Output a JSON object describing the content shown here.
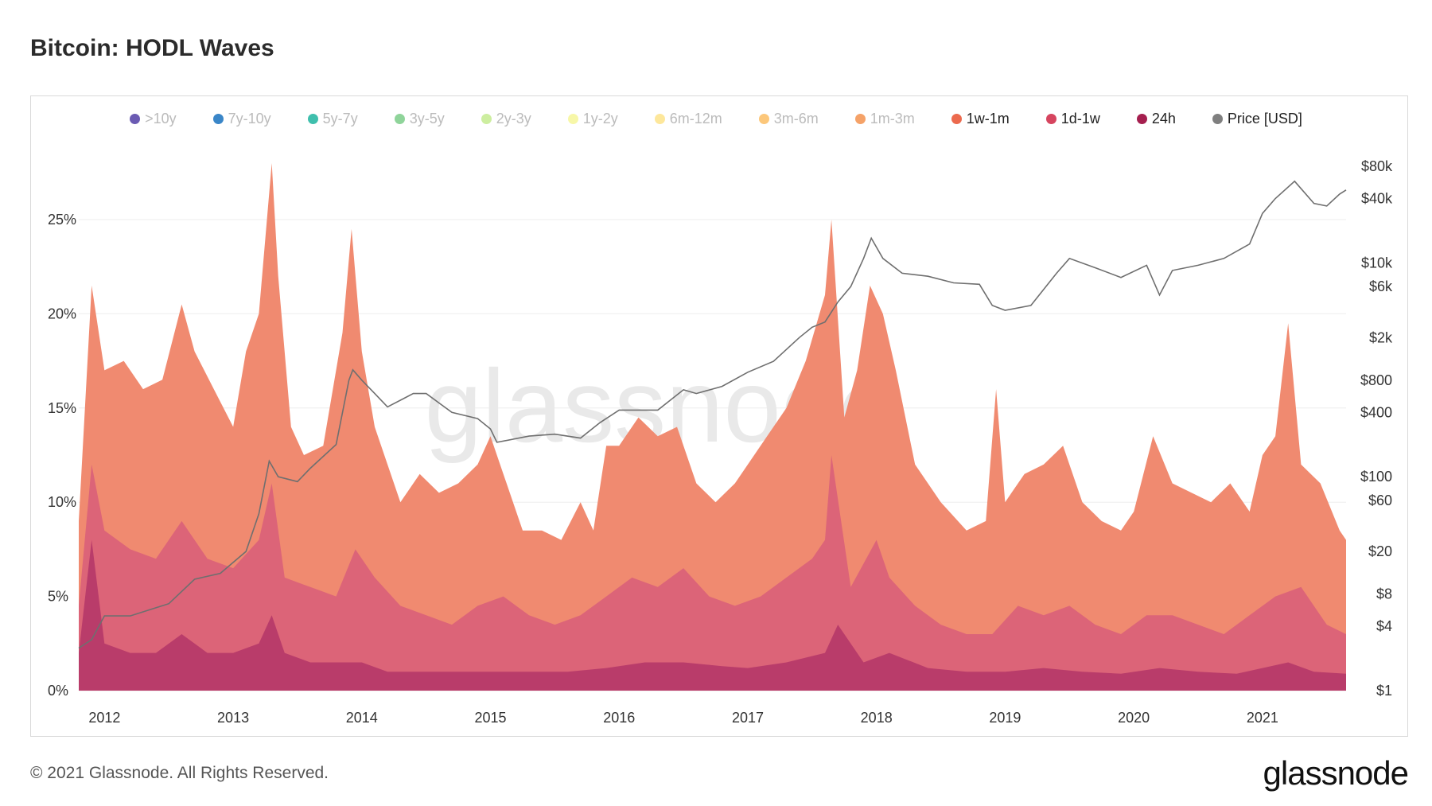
{
  "page": {
    "title": "Bitcoin: HODL Waves",
    "footer": "© 2021 Glassnode. All Rights Reserved.",
    "brand": "glassnode",
    "watermark": "glassnode"
  },
  "chart_data": {
    "type": "area",
    "title": "Bitcoin: HODL Waves",
    "legend_position": "top",
    "legend": [
      {
        "name": ">10y",
        "color": "#6b5bb3",
        "active": false
      },
      {
        "name": "7y-10y",
        "color": "#3a86c8",
        "active": false
      },
      {
        "name": "5y-7y",
        "color": "#3fbfad",
        "active": false
      },
      {
        "name": "3y-5y",
        "color": "#8fd49a",
        "active": false
      },
      {
        "name": "2y-3y",
        "color": "#cdeea0",
        "active": false
      },
      {
        "name": "1y-2y",
        "color": "#f7f7a8",
        "active": false
      },
      {
        "name": "6m-12m",
        "color": "#fde79b",
        "active": false
      },
      {
        "name": "3m-6m",
        "color": "#fcc77a",
        "active": false
      },
      {
        "name": "1m-3m",
        "color": "#f5a268",
        "active": false
      },
      {
        "name": "1w-1m",
        "color": "#ec6a4e",
        "active": true
      },
      {
        "name": "1d-1w",
        "color": "#d6455f",
        "active": true
      },
      {
        "name": "24h",
        "color": "#a51f4f",
        "active": true
      },
      {
        "name": "Price [USD]",
        "color": "#7f7f7f",
        "active": true
      }
    ],
    "x_ticks": [
      "2012",
      "2013",
      "2014",
      "2015",
      "2016",
      "2017",
      "2018",
      "2019",
      "2020",
      "2021"
    ],
    "y_left_ticks": [
      "0%",
      "5%",
      "10%",
      "15%",
      "20%",
      "25%"
    ],
    "y_left_range": [
      0,
      30
    ],
    "y_right_ticks": [
      "$1",
      "$4",
      "$8",
      "$20",
      "$60",
      "$100",
      "$400",
      "$800",
      "$2k",
      "$6k",
      "$10k",
      "$40k",
      "$80k"
    ],
    "y_right_scale": "log",
    "x_range": [
      2011.8,
      2021.65
    ],
    "grid": true,
    "series": [
      {
        "name": "1w-1m",
        "color": "#f08a70",
        "x": [
          2011.8,
          2011.9,
          2012.0,
          2012.15,
          2012.3,
          2012.45,
          2012.6,
          2012.7,
          2012.85,
          2013.0,
          2013.1,
          2013.2,
          2013.3,
          2013.35,
          2013.45,
          2013.55,
          2013.7,
          2013.85,
          2013.92,
          2014.0,
          2014.1,
          2014.2,
          2014.3,
          2014.45,
          2014.6,
          2014.75,
          2014.9,
          2015.0,
          2015.1,
          2015.25,
          2015.4,
          2015.55,
          2015.7,
          2015.8,
          2015.9,
          2016.0,
          2016.15,
          2016.3,
          2016.45,
          2016.6,
          2016.75,
          2016.9,
          2017.0,
          2017.15,
          2017.3,
          2017.45,
          2017.6,
          2017.65,
          2017.75,
          2017.85,
          2017.95,
          2018.05,
          2018.15,
          2018.3,
          2018.5,
          2018.7,
          2018.85,
          2018.93,
          2019.0,
          2019.15,
          2019.3,
          2019.45,
          2019.6,
          2019.75,
          2019.9,
          2020.0,
          2020.15,
          2020.3,
          2020.45,
          2020.6,
          2020.75,
          2020.9,
          2021.0,
          2021.1,
          2021.2,
          2021.3,
          2021.45,
          2021.6,
          2021.65
        ],
        "values": [
          9.0,
          21.5,
          17.0,
          17.5,
          16.0,
          16.5,
          20.5,
          18.0,
          16.0,
          14.0,
          18.0,
          20.0,
          28.0,
          22.0,
          14.0,
          12.5,
          13.0,
          19.0,
          24.5,
          18.0,
          14.0,
          12.0,
          10.0,
          11.5,
          10.5,
          11.0,
          12.0,
          13.5,
          11.5,
          8.5,
          8.5,
          8.0,
          10.0,
          8.5,
          13.0,
          13.0,
          14.5,
          13.5,
          14.0,
          11.0,
          10.0,
          11.0,
          12.0,
          13.5,
          15.0,
          17.5,
          21.0,
          25.0,
          14.5,
          17.0,
          21.5,
          20.0,
          17.0,
          12.0,
          10.0,
          8.5,
          9.0,
          16.0,
          10.0,
          11.5,
          12.0,
          13.0,
          10.0,
          9.0,
          8.5,
          9.5,
          13.5,
          11.0,
          10.5,
          10.0,
          11.0,
          9.5,
          12.5,
          13.5,
          19.5,
          12.0,
          11.0,
          8.5,
          8.0
        ]
      },
      {
        "name": "1d-1w",
        "color": "#dc6478",
        "x": [
          2011.8,
          2011.9,
          2012.0,
          2012.2,
          2012.4,
          2012.6,
          2012.8,
          2013.0,
          2013.2,
          2013.3,
          2013.4,
          2013.6,
          2013.8,
          2013.95,
          2014.1,
          2014.3,
          2014.5,
          2014.7,
          2014.9,
          2015.1,
          2015.3,
          2015.5,
          2015.7,
          2015.9,
          2016.1,
          2016.3,
          2016.5,
          2016.7,
          2016.9,
          2017.1,
          2017.3,
          2017.5,
          2017.6,
          2017.65,
          2017.8,
          2018.0,
          2018.1,
          2018.3,
          2018.5,
          2018.7,
          2018.9,
          2019.1,
          2019.3,
          2019.5,
          2019.7,
          2019.9,
          2020.1,
          2020.3,
          2020.5,
          2020.7,
          2020.9,
          2021.1,
          2021.3,
          2021.5,
          2021.65
        ],
        "values": [
          4.5,
          12.0,
          8.5,
          7.5,
          7.0,
          9.0,
          7.0,
          6.5,
          8.0,
          11.0,
          6.0,
          5.5,
          5.0,
          7.5,
          6.0,
          4.5,
          4.0,
          3.5,
          4.5,
          5.0,
          4.0,
          3.5,
          4.0,
          5.0,
          6.0,
          5.5,
          6.5,
          5.0,
          4.5,
          5.0,
          6.0,
          7.0,
          8.0,
          12.5,
          5.5,
          8.0,
          6.0,
          4.5,
          3.5,
          3.0,
          3.0,
          4.5,
          4.0,
          4.5,
          3.5,
          3.0,
          4.0,
          4.0,
          3.5,
          3.0,
          4.0,
          5.0,
          5.5,
          3.5,
          3.0
        ]
      },
      {
        "name": "24h",
        "color": "#b93c6a",
        "x": [
          2011.8,
          2011.9,
          2012.0,
          2012.2,
          2012.4,
          2012.6,
          2012.8,
          2013.0,
          2013.2,
          2013.3,
          2013.4,
          2013.6,
          2013.8,
          2014.0,
          2014.2,
          2014.5,
          2014.8,
          2015.0,
          2015.3,
          2015.6,
          2015.9,
          2016.2,
          2016.5,
          2016.8,
          2017.0,
          2017.3,
          2017.6,
          2017.7,
          2017.9,
          2018.1,
          2018.4,
          2018.7,
          2019.0,
          2019.3,
          2019.6,
          2019.9,
          2020.2,
          2020.5,
          2020.8,
          2021.0,
          2021.2,
          2021.4,
          2021.65
        ],
        "values": [
          2.0,
          8.0,
          2.5,
          2.0,
          2.0,
          3.0,
          2.0,
          2.0,
          2.5,
          4.0,
          2.0,
          1.5,
          1.5,
          1.5,
          1.0,
          1.0,
          1.0,
          1.0,
          1.0,
          1.0,
          1.2,
          1.5,
          1.5,
          1.3,
          1.2,
          1.5,
          2.0,
          3.5,
          1.5,
          2.0,
          1.2,
          1.0,
          1.0,
          1.2,
          1.0,
          0.9,
          1.2,
          1.0,
          0.9,
          1.2,
          1.5,
          1.0,
          0.9
        ]
      },
      {
        "name": "Price [USD]",
        "color": "#7f7f7f",
        "axis": "right",
        "x": [
          2011.8,
          2011.9,
          2012.0,
          2012.2,
          2012.5,
          2012.7,
          2012.9,
          2013.1,
          2013.2,
          2013.28,
          2013.35,
          2013.5,
          2013.6,
          2013.8,
          2013.9,
          2013.93,
          2014.0,
          2014.1,
          2014.2,
          2014.4,
          2014.5,
          2014.7,
          2014.9,
          2015.0,
          2015.05,
          2015.3,
          2015.5,
          2015.7,
          2015.85,
          2016.0,
          2016.3,
          2016.5,
          2016.6,
          2016.8,
          2017.0,
          2017.2,
          2017.4,
          2017.5,
          2017.6,
          2017.7,
          2017.8,
          2017.9,
          2017.96,
          2018.05,
          2018.2,
          2018.4,
          2018.6,
          2018.8,
          2018.9,
          2019.0,
          2019.2,
          2019.4,
          2019.5,
          2019.7,
          2019.9,
          2020.1,
          2020.2,
          2020.3,
          2020.5,
          2020.7,
          2020.9,
          2021.0,
          2021.1,
          2021.25,
          2021.4,
          2021.5,
          2021.6,
          2021.65
        ],
        "values": [
          2.5,
          3.0,
          5.0,
          5.0,
          6.5,
          11.0,
          12.5,
          20.0,
          45.0,
          140.0,
          100.0,
          90.0,
          120.0,
          200.0,
          800.0,
          1000.0,
          800.0,
          600.0,
          450.0,
          600.0,
          600.0,
          400.0,
          350.0,
          280.0,
          210.0,
          240.0,
          250.0,
          230.0,
          320.0,
          420.0,
          420.0,
          650.0,
          600.0,
          700.0,
          950.0,
          1200.0,
          2000.0,
          2500.0,
          2800.0,
          4300.0,
          6000.0,
          11000.0,
          17000.0,
          11000.0,
          8000.0,
          7500.0,
          6500.0,
          6300.0,
          4000.0,
          3600.0,
          4000.0,
          8000.0,
          11000.0,
          9000.0,
          7300.0,
          9500.0,
          5000.0,
          8500.0,
          9500.0,
          11000.0,
          15000.0,
          29000.0,
          40000.0,
          58000.0,
          36000.0,
          34000.0,
          44000.0,
          48000.0
        ]
      }
    ]
  }
}
